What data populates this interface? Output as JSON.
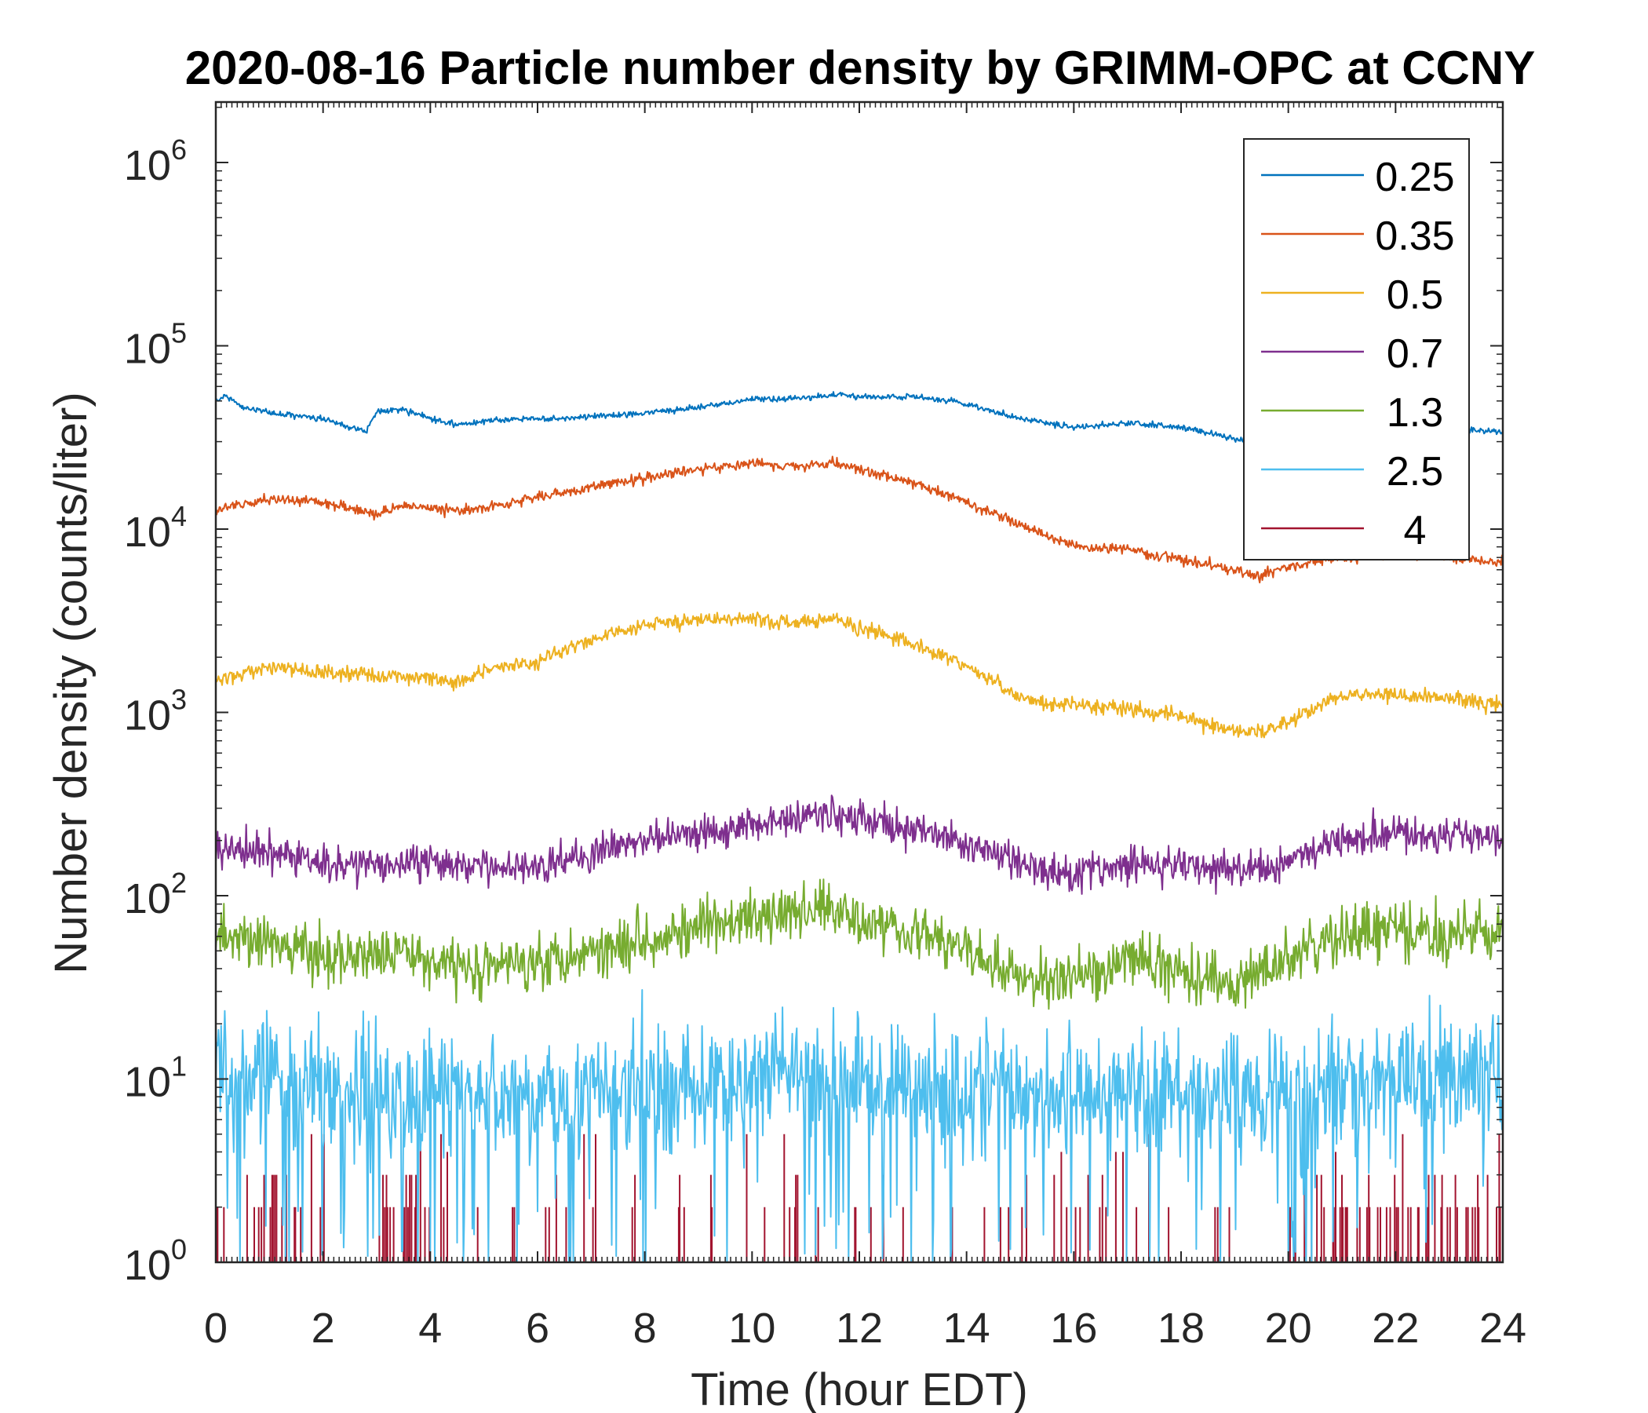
{
  "chart_data": {
    "type": "line",
    "title": "2020-08-16 Particle number density by GRIMM-OPC at CCNY",
    "xlabel": "Time (hour EDT)",
    "ylabel": "Number density (counts/liter)",
    "xlim": [
      0,
      24
    ],
    "ylim": [
      1,
      2000000
    ],
    "yscale": "log",
    "x_ticks": [
      0,
      2,
      4,
      6,
      8,
      10,
      12,
      14,
      16,
      18,
      20,
      22,
      24
    ],
    "y_tick_labels": [
      {
        "value": 1,
        "base": "10",
        "exp": "0"
      },
      {
        "value": 10,
        "base": "10",
        "exp": "1"
      },
      {
        "value": 100,
        "base": "10",
        "exp": "2"
      },
      {
        "value": 1000,
        "base": "10",
        "exp": "3"
      },
      {
        "value": 10000,
        "base": "10",
        "exp": "4"
      },
      {
        "value": 100000,
        "base": "10",
        "exp": "5"
      },
      {
        "value": 1000000,
        "base": "10",
        "exp": "6"
      }
    ],
    "legend_position": "top-right",
    "series": [
      {
        "name": "0.25",
        "color": "#0072BD",
        "noise": 0.012,
        "x": [
          0,
          0.2,
          0.5,
          1,
          1.5,
          2,
          2.5,
          2.8,
          3,
          3.5,
          4,
          4.5,
          5,
          6,
          7,
          8,
          9,
          10,
          11,
          11.5,
          12,
          13,
          14,
          15,
          16,
          17,
          18,
          19,
          20,
          21,
          22,
          23,
          24
        ],
        "values": [
          50000,
          53000,
          46000,
          43000,
          42000,
          40000,
          36000,
          34000,
          44000,
          45000,
          40000,
          37000,
          39000,
          40000,
          41000,
          43000,
          46000,
          51000,
          52000,
          54000,
          53000,
          53000,
          48000,
          40000,
          36000,
          38000,
          36000,
          31000,
          29000,
          31000,
          33000,
          35000,
          34000
        ]
      },
      {
        "name": "0.35",
        "color": "#D95319",
        "noise": 0.02,
        "x": [
          0,
          1,
          2,
          3,
          3.5,
          4,
          4.5,
          5,
          6,
          7,
          8,
          9,
          10,
          11,
          11.5,
          12,
          13,
          14,
          15,
          16,
          17,
          18,
          19,
          19.5,
          20,
          21,
          22,
          23,
          24
        ],
        "values": [
          13000,
          14500,
          14000,
          12000,
          13500,
          13000,
          12500,
          13000,
          15000,
          17000,
          19000,
          21000,
          23000,
          22000,
          23000,
          21000,
          18000,
          14000,
          10500,
          8000,
          7800,
          6800,
          6000,
          5600,
          6300,
          7000,
          7400,
          7000,
          6600
        ]
      },
      {
        "name": "0.5",
        "color": "#EDB120",
        "noise": 0.03,
        "x": [
          0,
          1,
          2,
          3,
          4,
          4.5,
          5,
          6,
          7,
          8,
          9,
          10,
          11,
          11.5,
          12,
          13,
          14,
          15,
          15.5,
          16,
          17,
          18,
          19,
          19.5,
          20,
          20.5,
          21,
          22,
          23,
          24
        ],
        "values": [
          1500,
          1750,
          1650,
          1600,
          1550,
          1450,
          1700,
          1900,
          2500,
          3000,
          3200,
          3200,
          3100,
          3300,
          2900,
          2400,
          1800,
          1200,
          1100,
          1100,
          1050,
          950,
          800,
          780,
          900,
          1050,
          1250,
          1250,
          1200,
          1100
        ]
      },
      {
        "name": "0.7",
        "color": "#7E2F8E",
        "noise": 0.07,
        "x": [
          0,
          1,
          2,
          3,
          4,
          5,
          6,
          7,
          8,
          9,
          10,
          11,
          11.5,
          12,
          13,
          14,
          15,
          16,
          17,
          18,
          19,
          19.5,
          20,
          21,
          22,
          23,
          24
        ],
        "values": [
          180,
          170,
          150,
          145,
          155,
          140,
          150,
          170,
          200,
          220,
          250,
          270,
          280,
          260,
          230,
          190,
          150,
          130,
          150,
          145,
          140,
          135,
          160,
          210,
          220,
          215,
          210
        ]
      },
      {
        "name": "1.3",
        "color": "#77AC30",
        "noise": 0.11,
        "x": [
          0,
          1,
          2,
          3,
          4,
          5,
          6,
          7,
          8,
          9,
          10,
          11,
          11.5,
          12,
          13,
          14,
          15,
          16,
          17,
          18,
          19,
          20,
          21,
          22,
          23,
          24
        ],
        "values": [
          60,
          55,
          45,
          50,
          45,
          40,
          45,
          50,
          60,
          65,
          75,
          80,
          90,
          75,
          65,
          50,
          35,
          35,
          45,
          40,
          32,
          45,
          60,
          65,
          60,
          65
        ]
      },
      {
        "name": "2.5",
        "color": "#4DBEEE",
        "noise": 0.24,
        "x": [
          0,
          2,
          4,
          6,
          8,
          10,
          12,
          14,
          16,
          18,
          20,
          22,
          24
        ],
        "values": [
          11,
          9,
          8,
          8,
          9,
          10,
          10,
          9,
          9,
          8,
          9,
          10,
          11
        ]
      },
      {
        "name": "4",
        "color": "#A2142F",
        "noise": 0.3,
        "sparse": true,
        "x": [
          0,
          24
        ],
        "values": [
          1.5,
          1.5
        ]
      }
    ]
  }
}
